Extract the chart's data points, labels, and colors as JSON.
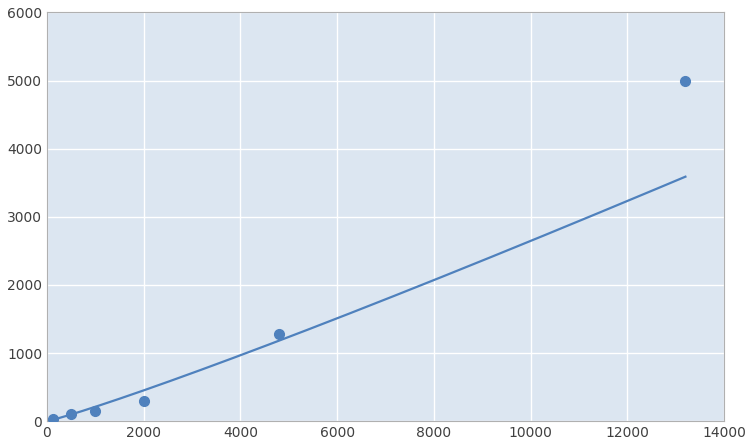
{
  "x_data": [
    125,
    500,
    1000,
    2000,
    4800,
    13200
  ],
  "y_data": [
    30,
    100,
    150,
    300,
    1280,
    5000
  ],
  "line_color": "#4F81BD",
  "marker_color": "#4F81BD",
  "marker_size": 7,
  "line_width": 1.6,
  "xlim": [
    0,
    14000
  ],
  "ylim": [
    0,
    6000
  ],
  "xticks": [
    0,
    2000,
    4000,
    6000,
    8000,
    10000,
    12000,
    14000
  ],
  "yticks": [
    0,
    1000,
    2000,
    3000,
    4000,
    5000,
    6000
  ],
  "background_color": "#ffffff",
  "plot_bg_color": "#dce6f1",
  "grid_color": "#ffffff",
  "grid_linewidth": 1.0
}
